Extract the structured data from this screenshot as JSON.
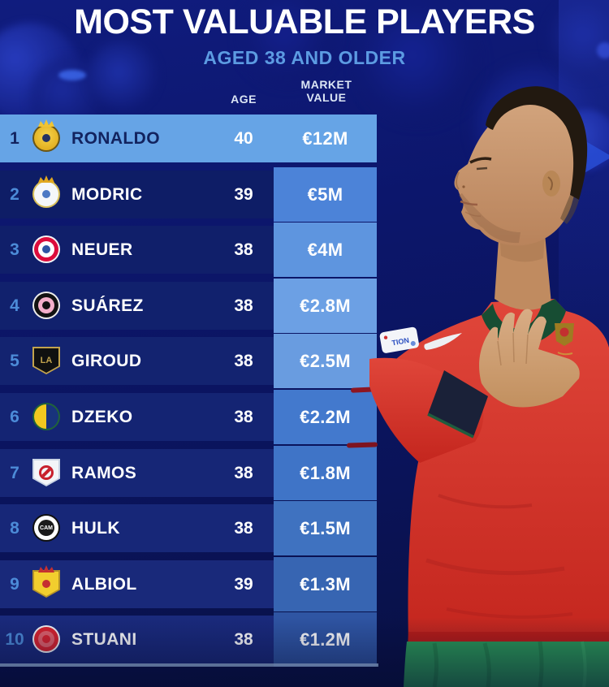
{
  "poster": {
    "title": "MOST VALUABLE PLAYERS",
    "subtitle": "AGED 38 AND OLDER",
    "columns": {
      "age": "AGE",
      "market_value_line1": "MARKET",
      "market_value_line2": "VALUE"
    }
  },
  "colors": {
    "deep_background": "#0B1566",
    "highlight_row": "#66A4E6",
    "rank_accent": "#4C8BD8",
    "dark_text": "#12235F",
    "subtitle_blue": "#5C9BE2",
    "column_header_text": "#DCE6F5",
    "table_accent_line": "#A8C9F1",
    "jersey_red": "#D6362B",
    "shorts_green": "#2B9757",
    "collar_green": "#174D33"
  },
  "rows": [
    {
      "rank": "1",
      "player": "RONALDO",
      "age": "40",
      "value": "€12M",
      "club": "al-nassr",
      "highlight": true,
      "row_bg": "#66A4E6",
      "value_bg": ""
    },
    {
      "rank": "2",
      "player": "MODRIC",
      "age": "39",
      "value": "€5M",
      "club": "real-madrid",
      "highlight": false,
      "row_bg": "#0E1D66",
      "value_bg": "#4C83D8"
    },
    {
      "rank": "3",
      "player": "NEUER",
      "age": "38",
      "value": "€4M",
      "club": "bayern-munich",
      "highlight": false,
      "row_bg": "#101F6A",
      "value_bg": "#5E95DF"
    },
    {
      "rank": "4",
      "player": "SUÁREZ",
      "age": "38",
      "value": "€2.8M",
      "club": "inter-miami",
      "highlight": false,
      "row_bg": "#11216D",
      "value_bg": "#6CA0E4"
    },
    {
      "rank": "5",
      "player": "GIROUD",
      "age": "38",
      "value": "€2.5M",
      "club": "lafc",
      "highlight": false,
      "row_bg": "#132370",
      "value_bg": "#699CE0"
    },
    {
      "rank": "6",
      "player": "DZEKO",
      "age": "38",
      "value": "€2.2M",
      "club": "fenerbahce",
      "highlight": false,
      "row_bg": "#142473",
      "value_bg": "#4379CD"
    },
    {
      "rank": "7",
      "player": "RAMOS",
      "age": "38",
      "value": "€1.8M",
      "club": "monterrey",
      "highlight": false,
      "row_bg": "#162676",
      "value_bg": "#3F74C7"
    },
    {
      "rank": "8",
      "player": "HULK",
      "age": "38",
      "value": "€1.5M",
      "club": "atletico-mineiro",
      "highlight": false,
      "row_bg": "#172778",
      "value_bg": "#3F72C0"
    },
    {
      "rank": "9",
      "player": "ALBIOL",
      "age": "39",
      "value": "€1.3M",
      "club": "villarreal",
      "highlight": false,
      "row_bg": "#19297A",
      "value_bg": "#3765B2"
    },
    {
      "rank": "10",
      "player": "STUANI",
      "age": "38",
      "value": "€1.2M",
      "club": "girona",
      "highlight": false,
      "row_bg": "#1A2A7C",
      "value_bg": "#2F55A3"
    }
  ],
  "badges": {
    "al-nassr": {
      "shape": "circle",
      "ring": "#6B5616",
      "bg": "radial-gradient(circle at 50% 40%, #F6D44C 0%, #E4B122 70%)",
      "inner": "#253262",
      "crown": "#F0C432"
    },
    "real-madrid": {
      "shape": "circle",
      "ring": "#D8C05A",
      "bg": "#F5F7FA",
      "inner": "#4C79C4",
      "crown": "#E2A81E"
    },
    "bayern-munich": {
      "shape": "circle",
      "ring": "#F2F3F5",
      "bg": "#DC0C3C",
      "mid": "#FFFFFF",
      "inner": "#2E55A5"
    },
    "inter-miami": {
      "shape": "circle",
      "ring": "#ECECEC",
      "bg": "#121212",
      "mid": "#F4AFCB",
      "inner": "#121212"
    },
    "lafc": {
      "shape": "shield",
      "ring": "#C2A34D",
      "bg": "#101010",
      "text": "LA",
      "text_color": "#C2A34D",
      "text_size": "11px"
    },
    "fenerbahce": {
      "shape": "circle",
      "ring": "#20633A",
      "bg": "linear-gradient(90deg,#F2C91F 50%,#18337C 50%)"
    },
    "monterrey": {
      "shape": "shield",
      "ring": "#C9D4E4",
      "bg": "#F3F5F8",
      "slash": "#C8202C"
    },
    "atletico-mineiro": {
      "shape": "circle",
      "ring": "#111111",
      "bg": "#FFFFFF",
      "mid": "#1A1A1A",
      "text": "CAM",
      "text_color": "#FFFFFF",
      "text_size": "7px"
    },
    "villarreal": {
      "shape": "shield",
      "ring": "#B4922A",
      "bg": "#F2CE2E",
      "inner": "#C53030",
      "crown": "#C53030"
    },
    "girona": {
      "shape": "circle",
      "ring": "#F2F3F5",
      "bg": "#D8232E",
      "mid": "#E2626C",
      "inner": "#D8232E"
    }
  },
  "photo": {
    "alt": "Cristiano Ronaldo in red Portugal shirt with hand on chest",
    "sleeve_patch_text": "TION"
  }
}
